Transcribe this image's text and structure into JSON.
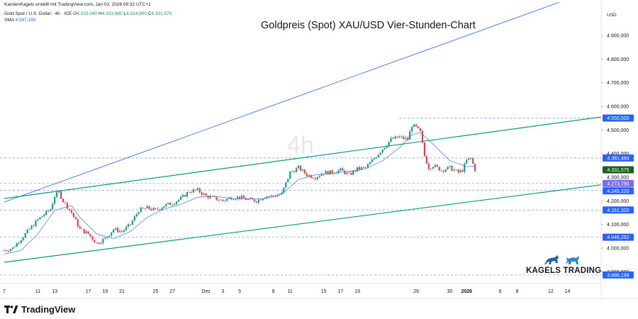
{
  "header": {
    "credit": "KarstenKagels erstellt mit TradingView.com, Jan 03, 2026 09:32 UTC+1",
    "symbol": "Gold Spot / U.S. Dollar · 4h · ICE",
    "ohlc": [
      {
        "key": "O",
        "value": "4.315,040"
      },
      {
        "key": "H",
        "value": "4.333,980"
      },
      {
        "key": "L",
        "value": "4.314,900"
      },
      {
        "key": "C",
        "value": "4.331,575"
      }
    ],
    "sma_label": "SMA",
    "sma_value": "4.347,195"
  },
  "footer": {
    "brand": "TradingView"
  },
  "branding": {
    "name": "KAGELS TRADING"
  },
  "chart_data": {
    "type": "candlestick",
    "title": "Goldpreis (Spot) XAU/USD Vier-Stunden-Chart",
    "watermark": "4h",
    "currency_label": "USD",
    "y_axis": {
      "range": [
        3850,
        5050
      ],
      "ticks": [
        "3.900,000",
        "4.000,000",
        "4.100,000",
        "4.200,000",
        "4.300,000",
        "4.400,000",
        "4.500,000",
        "4.600,000",
        "4.700,000",
        "4.800,000",
        "4.900,000"
      ]
    },
    "x_axis": {
      "labels": [
        "7",
        "11",
        "13",
        "17",
        "19",
        "21",
        "25",
        "27",
        "Dez",
        "3",
        "5",
        "9",
        "11",
        "15",
        "17",
        "19",
        "26",
        "30",
        "2026",
        "6",
        "8",
        "12",
        "14"
      ],
      "unit": "calendar days from 7 Nov 2025",
      "label_days": [
        0,
        4,
        6,
        10,
        12,
        14,
        18,
        20,
        24,
        26,
        28,
        32,
        34,
        38,
        40,
        42,
        49,
        53,
        55,
        59,
        61,
        65,
        67
      ],
      "range_days": [
        0,
        71
      ]
    },
    "price_levels": [
      {
        "value": 4550.52,
        "label": "4.550,520",
        "style": "dashed",
        "color": "#2962ff"
      },
      {
        "value": 4381.484,
        "label": "4.381,484",
        "style": "dashed",
        "color": "#2962ff"
      },
      {
        "value": 4331.575,
        "label": "4.331,575",
        "style": "current",
        "color": "#1b5e20"
      },
      {
        "value": 4273.78,
        "label": "4.273,780",
        "style": "dashed",
        "color": "#7b6df2"
      },
      {
        "value": 4245.22,
        "label": "4.245,220",
        "style": "dashed",
        "color": "#2962ff"
      },
      {
        "value": 4161.32,
        "label": "4.161,320",
        "style": "dashed",
        "color": "#2962ff"
      },
      {
        "value": 4046.252,
        "label": "4.046,252",
        "style": "dashed",
        "color": "#2962ff"
      },
      {
        "value": 3886.199,
        "label": "3.886,199",
        "style": "dashed",
        "color": "#2962ff"
      }
    ],
    "trend_lines": [
      {
        "name": "channel-upper",
        "color": "#2962ff",
        "points": [
          [
            0,
            4195
          ],
          [
            66,
            5040
          ]
        ]
      },
      {
        "name": "channel-middle",
        "color": "#089981",
        "points": [
          [
            0,
            4210
          ],
          [
            71,
            4555
          ]
        ]
      },
      {
        "name": "channel-lower",
        "color": "#089981",
        "points": [
          [
            0,
            3940
          ],
          [
            71,
            4268
          ]
        ]
      }
    ],
    "price_path": [
      [
        0,
        3990
      ],
      [
        1,
        4000
      ],
      [
        2,
        4040
      ],
      [
        3,
        4080
      ],
      [
        4,
        4120
      ],
      [
        5,
        4150
      ],
      [
        5.5,
        4165
      ],
      [
        6,
        4220
      ],
      [
        6.5,
        4235
      ],
      [
        7,
        4200
      ],
      [
        8,
        4150
      ],
      [
        9,
        4080
      ],
      [
        10,
        4060
      ],
      [
        11,
        4020
      ],
      [
        12,
        4040
      ],
      [
        13,
        4080
      ],
      [
        14,
        4070
      ],
      [
        15,
        4100
      ],
      [
        16,
        4160
      ],
      [
        17,
        4170
      ],
      [
        18,
        4160
      ],
      [
        19,
        4180
      ],
      [
        20,
        4190
      ],
      [
        21,
        4210
      ],
      [
        22,
        4240
      ],
      [
        23,
        4245
      ],
      [
        24,
        4220
      ],
      [
        25,
        4210
      ],
      [
        26,
        4200
      ],
      [
        27,
        4215
      ],
      [
        28,
        4215
      ],
      [
        29,
        4205
      ],
      [
        30,
        4200
      ],
      [
        31,
        4220
      ],
      [
        32,
        4220
      ],
      [
        33,
        4230
      ],
      [
        34,
        4320
      ],
      [
        35,
        4340
      ],
      [
        36,
        4310
      ],
      [
        37,
        4300
      ],
      [
        38,
        4320
      ],
      [
        39,
        4320
      ],
      [
        40,
        4330
      ],
      [
        41,
        4310
      ],
      [
        42,
        4335
      ],
      [
        43,
        4340
      ],
      [
        44,
        4380
      ],
      [
        45,
        4420
      ],
      [
        46,
        4460
      ],
      [
        47,
        4470
      ],
      [
        48,
        4460
      ],
      [
        48.5,
        4520
      ],
      [
        49,
        4510
      ],
      [
        49.5,
        4490
      ],
      [
        50,
        4390
      ],
      [
        50.5,
        4340
      ],
      [
        51,
        4350
      ],
      [
        52,
        4330
      ],
      [
        53,
        4340
      ],
      [
        54,
        4320
      ],
      [
        54.5,
        4330
      ],
      [
        55,
        4370
      ],
      [
        55.5,
        4380
      ],
      [
        56,
        4332
      ]
    ],
    "sma": [
      [
        0,
        3975
      ],
      [
        2,
        3990
      ],
      [
        4,
        4060
      ],
      [
        6,
        4160
      ],
      [
        8,
        4180
      ],
      [
        9,
        4130
      ],
      [
        11,
        4060
      ],
      [
        13,
        4040
      ],
      [
        15,
        4070
      ],
      [
        17,
        4130
      ],
      [
        19,
        4165
      ],
      [
        21,
        4185
      ],
      [
        23,
        4215
      ],
      [
        25,
        4220
      ],
      [
        27,
        4210
      ],
      [
        29,
        4208
      ],
      [
        31,
        4210
      ],
      [
        33,
        4228
      ],
      [
        35,
        4290
      ],
      [
        37,
        4310
      ],
      [
        39,
        4318
      ],
      [
        41,
        4325
      ],
      [
        43,
        4335
      ],
      [
        45,
        4370
      ],
      [
        47,
        4425
      ],
      [
        48.5,
        4480
      ],
      [
        49.5,
        4490
      ],
      [
        51,
        4440
      ],
      [
        53,
        4370
      ],
      [
        55,
        4345
      ],
      [
        56,
        4347
      ]
    ]
  }
}
